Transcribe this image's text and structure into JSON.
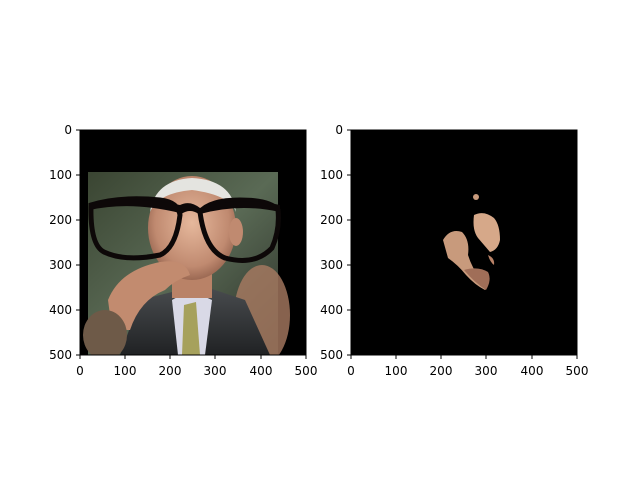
{
  "figure": {
    "background": "#ffffff",
    "panels": [
      {
        "id": "left",
        "content": "photo of an elderly man in suit and tie, resting chin on hand, with large black glasses overlay",
        "xticks": [
          "0",
          "100",
          "200",
          "300",
          "400",
          "500"
        ],
        "yticks": [
          "0",
          "100",
          "200",
          "300",
          "400",
          "500"
        ],
        "glasses_color": "#0d0808"
      },
      {
        "id": "right",
        "content": "black mask revealing small patches of skin around the eyes/nose region",
        "xticks": [
          "0",
          "100",
          "200",
          "300",
          "400",
          "500"
        ],
        "yticks": [
          "0",
          "100",
          "200",
          "300",
          "400",
          "500"
        ],
        "skin_color": "#c89a7c"
      }
    ]
  }
}
